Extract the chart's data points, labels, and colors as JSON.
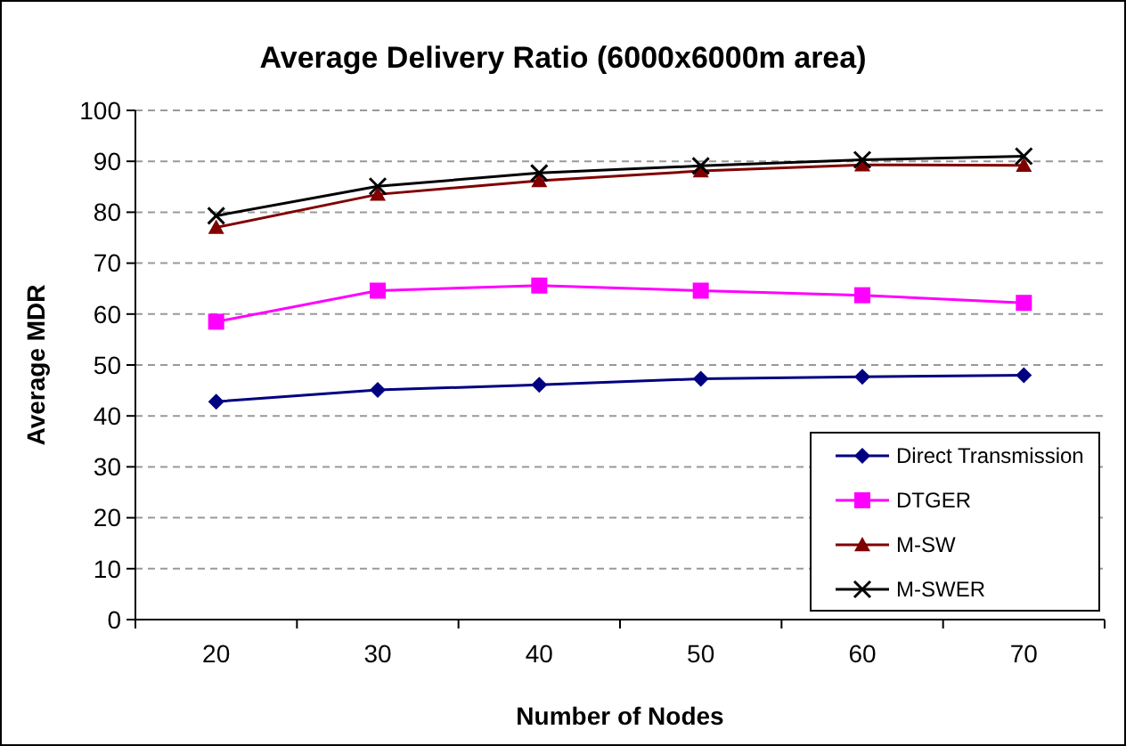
{
  "chart_data": {
    "type": "line",
    "title": "Average Delivery Ratio (6000x6000m area)",
    "xlabel": "Number of Nodes",
    "ylabel": "Average MDR",
    "categories": [
      "20",
      "30",
      "40",
      "50",
      "60",
      "70"
    ],
    "ylim": [
      0,
      100
    ],
    "yticks": [
      0,
      10,
      20,
      30,
      40,
      50,
      60,
      70,
      80,
      90,
      100
    ],
    "grid": "y",
    "legend": "bottom right",
    "series": [
      {
        "name": "Direct Transmission",
        "color": "#000080",
        "marker": "diamond",
        "values": [
          42.8,
          45.1,
          46.1,
          47.3,
          47.7,
          48.0
        ]
      },
      {
        "name": "DTGER",
        "color": "#ff00ff",
        "marker": "square",
        "values": [
          58.5,
          64.6,
          65.6,
          64.6,
          63.7,
          62.2
        ]
      },
      {
        "name": "M-SW",
        "color": "#800000",
        "marker": "triangle",
        "values": [
          77.0,
          83.5,
          86.2,
          88.1,
          89.3,
          89.2
        ]
      },
      {
        "name": "M-SWER",
        "color": "#000000",
        "marker": "cross",
        "values": [
          79.3,
          85.1,
          87.7,
          89.1,
          90.3,
          91.0
        ]
      }
    ]
  }
}
